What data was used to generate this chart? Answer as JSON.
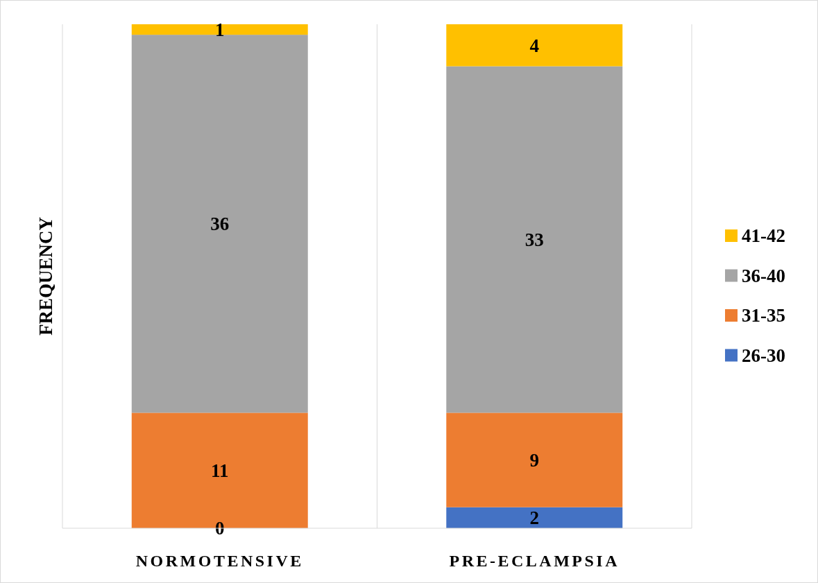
{
  "chart_data": {
    "type": "bar",
    "stacked": true,
    "ylabel": "FREQUENCY",
    "categories": [
      "NORMOTENSIVE",
      "PRE-ECLAMPSIA"
    ],
    "series": [
      {
        "name": "26-30",
        "color": "#4472c4",
        "values": [
          0,
          2
        ],
        "value_labels": [
          null,
          "2"
        ]
      },
      {
        "name": "31-35",
        "color": "#ed7d31",
        "values": [
          11,
          9
        ],
        "value_labels": [
          "11",
          "9"
        ]
      },
      {
        "name": "36-40",
        "color": "#a5a5a5",
        "values": [
          36,
          33
        ],
        "value_labels": [
          "36",
          "33"
        ]
      },
      {
        "name": "41-42",
        "color": "#ffc000",
        "values": [
          1,
          4
        ],
        "value_labels": [
          "1",
          "4"
        ]
      }
    ],
    "annotations": [
      {
        "text": "0",
        "x": "NORMOTENSIVE",
        "y": 0
      }
    ],
    "grid": "x",
    "legend": "right",
    "tick_labels": "x"
  }
}
